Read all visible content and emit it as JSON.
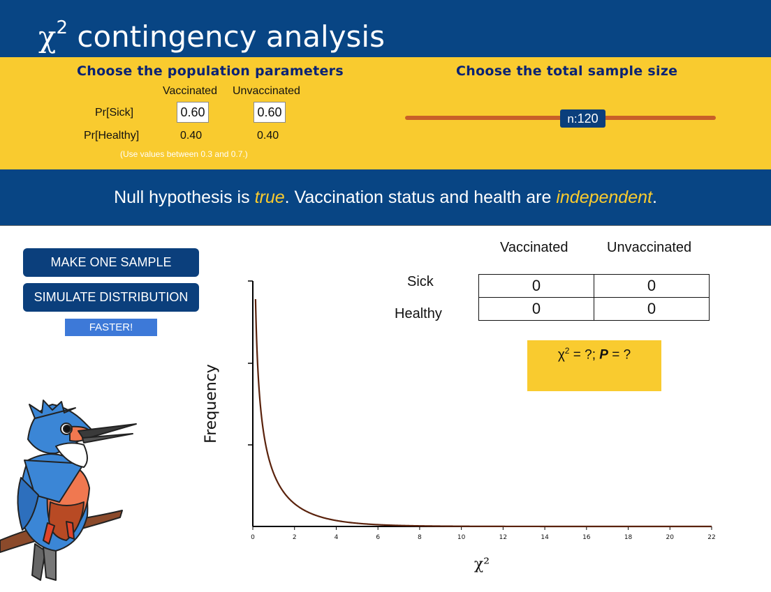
{
  "header": {
    "title_symbol": "χ",
    "title_sup": "2",
    "title_text": " contingency analysis"
  },
  "params": {
    "title": "Choose the population parameters",
    "col_vaccinated": "Vaccinated",
    "col_unvaccinated": "Unvaccinated",
    "row_sick": "Pr[Sick]",
    "row_healthy": "Pr[Healthy]",
    "sick_vaccinated": "0.60",
    "sick_unvaccinated": "0.60",
    "healthy_vaccinated": "0.40",
    "healthy_unvaccinated": "0.40",
    "hint": "(Use values between 0.3 and 0.7.)"
  },
  "sample": {
    "title": "Choose the total sample size",
    "n_label": "n:",
    "n_value": "120",
    "n": 120
  },
  "banner": {
    "part1": "Null hypothesis is ",
    "em1": "true",
    "part2": ". Vaccination status and health are ",
    "em2": "independent",
    "part3": "."
  },
  "buttons": {
    "make_one": "MAKE ONE SAMPLE",
    "simulate": "SIMULATE DISTRIBUTION",
    "faster": "FASTER!"
  },
  "table": {
    "col_vaccinated": "Vaccinated",
    "col_unvaccinated": "Unvaccinated",
    "row_sick": "Sick",
    "row_healthy": "Healthy",
    "sick_vaccinated": "0",
    "sick_unvaccinated": "0",
    "healthy_vaccinated": "0",
    "healthy_unvaccinated": "0"
  },
  "result": {
    "chi": "χ",
    "sup": "2",
    "chi_rest": " = ?; ",
    "p": "P",
    "p_rest": " = ?"
  },
  "chart_data": {
    "type": "line",
    "xlabel": "χ²",
    "ylabel": "Frequency",
    "xlim": [
      0,
      22
    ],
    "xticks": [
      "0",
      "2",
      "4",
      "6",
      "8",
      "10",
      "12",
      "14",
      "16",
      "18",
      "20",
      "22"
    ],
    "series": [
      {
        "function": "chi-square density, df = 1",
        "df": 1,
        "color": "#5a220c"
      }
    ]
  },
  "colors": {
    "navy": "#084584",
    "yellow": "#f9cb2f",
    "slider": "#c85f28",
    "button": "#0b3f7c",
    "faster": "#3d79d8"
  },
  "icons": {
    "mascot": "kingfisher-icon"
  }
}
